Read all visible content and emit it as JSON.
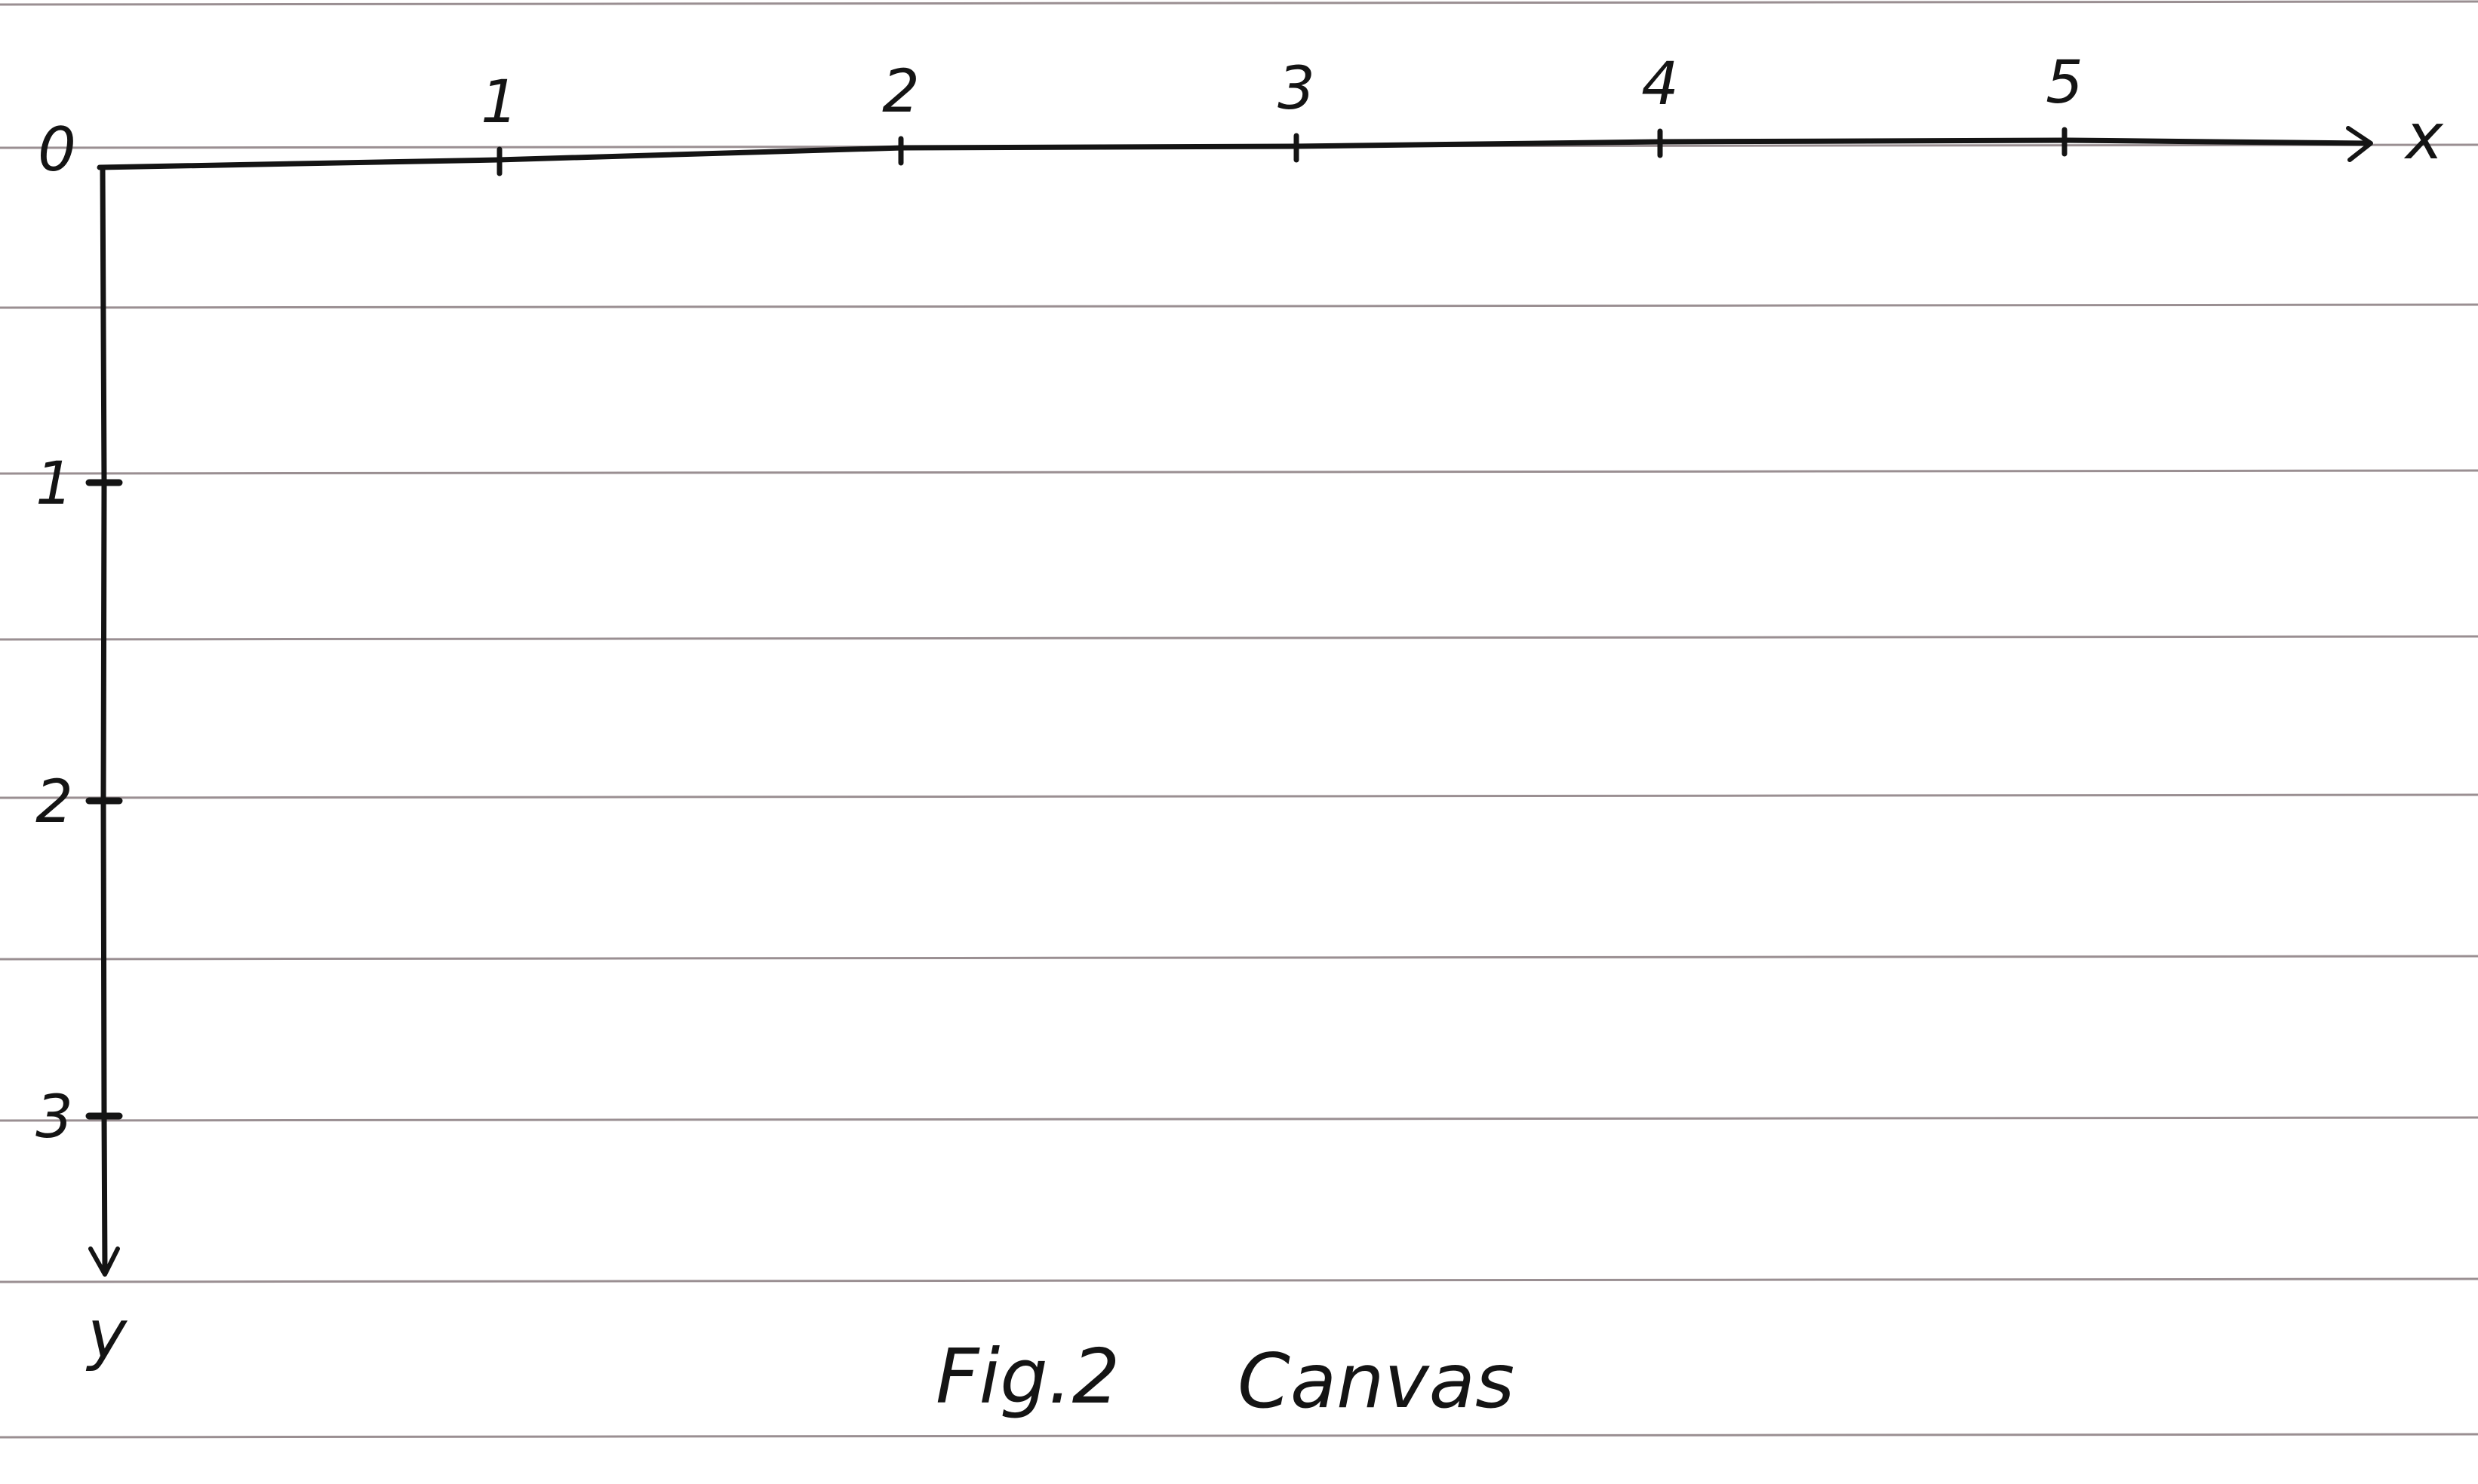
{
  "paper": {
    "rule_color": "#9a8f92",
    "ink_color": "#141414"
  },
  "axes": {
    "origin_label": "0",
    "x_axis_label": "x",
    "y_axis_label": "y",
    "x_ticks": [
      "1",
      "2",
      "3",
      "4",
      "5"
    ],
    "y_ticks": [
      "1",
      "2",
      "3"
    ]
  },
  "caption": {
    "figure": "Fig.2",
    "title": "Canvas"
  }
}
